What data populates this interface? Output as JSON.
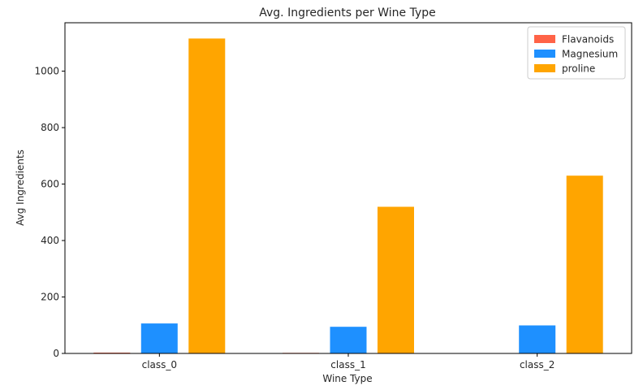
{
  "chart_data": {
    "type": "bar",
    "title": "Avg. Ingredients per Wine Type",
    "xlabel": "Wine Type",
    "ylabel": "Avg Ingredients",
    "categories": [
      "class_0",
      "class_1",
      "class_2"
    ],
    "series": [
      {
        "name": "Flavanoids",
        "color": "#ff6347",
        "values": [
          2.98,
          2.08,
          0.78
        ]
      },
      {
        "name": "Magnesium",
        "color": "#1e90ff",
        "values": [
          106.3,
          94.5,
          99.3
        ]
      },
      {
        "name": "proline",
        "color": "#ffa500",
        "values": [
          1115.7,
          519.5,
          629.9
        ]
      }
    ],
    "ylim": [
      0,
      1171.5
    ],
    "yticks": [
      0,
      200,
      400,
      600,
      800,
      1000
    ],
    "grid": false,
    "legend": "top-right"
  }
}
